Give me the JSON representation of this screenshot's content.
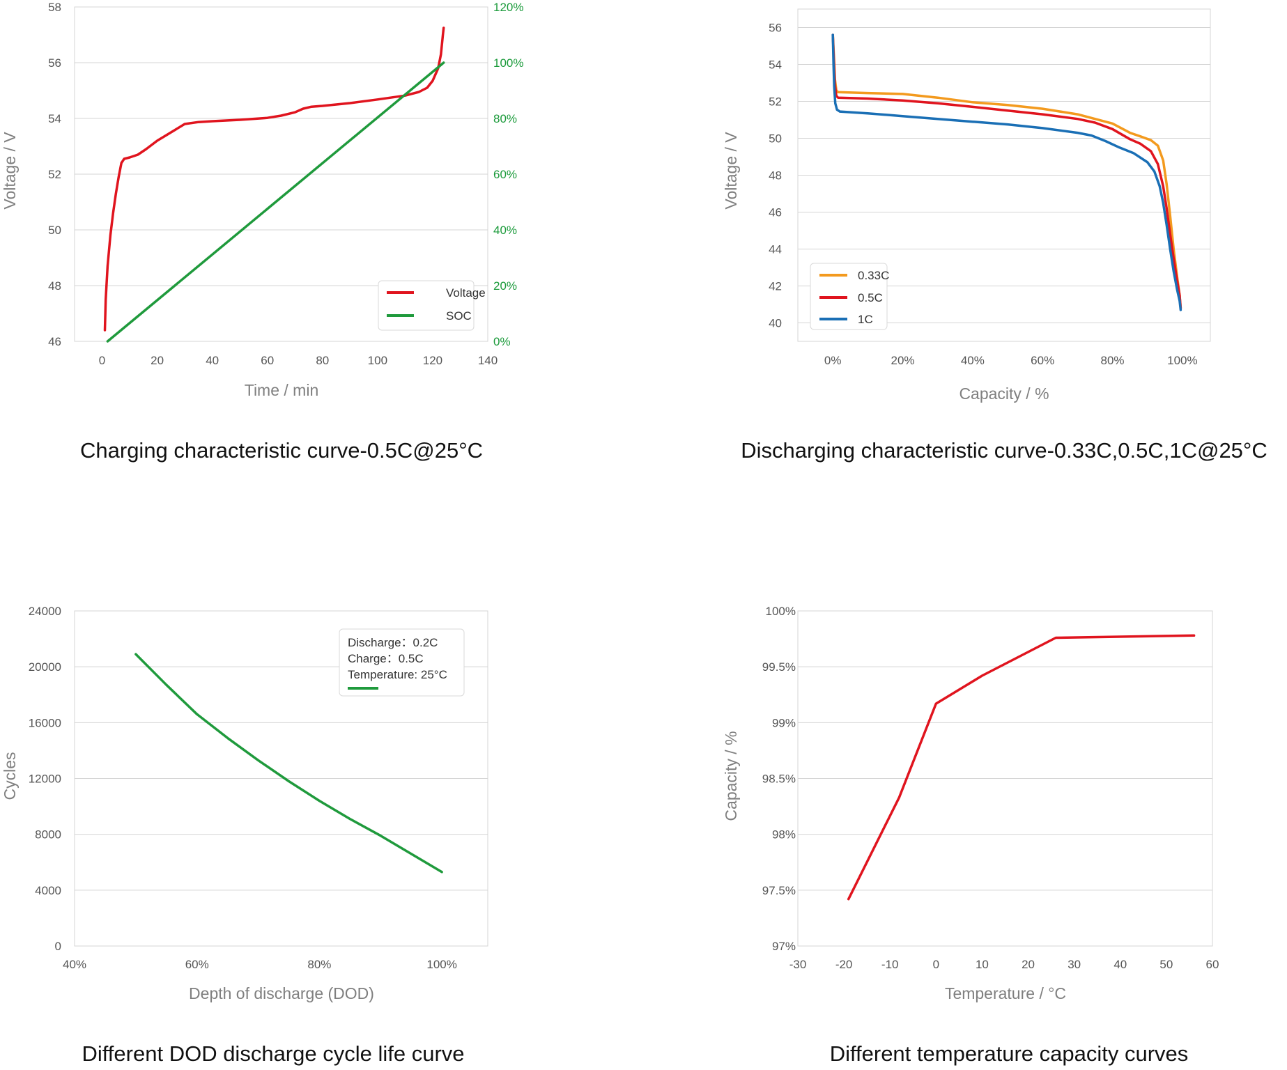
{
  "colors": {
    "red": "#e0141e",
    "green": "#1f9a3c",
    "orange": "#f39a1e",
    "blue": "#1a6fb5",
    "green_axis": "#1a9a3a"
  },
  "chart_data": [
    {
      "type": "line",
      "caption": "Charging characteristic curve-0.5C@25°C",
      "xlabel": "Time / min",
      "ylabel": "Voltage / V",
      "xlim": [
        -10,
        140
      ],
      "ylim": [
        46,
        58
      ],
      "y2lim": [
        0,
        120
      ],
      "x_ticks": [
        "0",
        "20",
        "40",
        "60",
        "80",
        "100",
        "120",
        "140"
      ],
      "y_ticks": [
        "46",
        "48",
        "50",
        "52",
        "54",
        "56",
        "58"
      ],
      "y2_ticks": [
        "0%",
        "20%",
        "40%",
        "60%",
        "80%",
        "100%",
        "120%"
      ],
      "legend_position": "bottom-right",
      "series": [
        {
          "name": "Voltage",
          "axis": "left",
          "color": "#e0141e",
          "points": [
            [
              1,
              46.4
            ],
            [
              1.3,
              47.5
            ],
            [
              2,
              48.7
            ],
            [
              3,
              49.8
            ],
            [
              4,
              50.6
            ],
            [
              5,
              51.3
            ],
            [
              6,
              51.9
            ],
            [
              7,
              52.4
            ],
            [
              8,
              52.55
            ],
            [
              10,
              52.6
            ],
            [
              13,
              52.7
            ],
            [
              16,
              52.9
            ],
            [
              20,
              53.2
            ],
            [
              25,
              53.5
            ],
            [
              30,
              53.8
            ],
            [
              35,
              53.87
            ],
            [
              40,
              53.9
            ],
            [
              50,
              53.95
            ],
            [
              60,
              54.02
            ],
            [
              65,
              54.1
            ],
            [
              70,
              54.22
            ],
            [
              73,
              54.35
            ],
            [
              76,
              54.42
            ],
            [
              80,
              54.45
            ],
            [
              90,
              54.55
            ],
            [
              100,
              54.68
            ],
            [
              110,
              54.82
            ],
            [
              115,
              54.95
            ],
            [
              118,
              55.1
            ],
            [
              120,
              55.35
            ],
            [
              122,
              55.8
            ],
            [
              123,
              56.3
            ],
            [
              123.7,
              57.0
            ],
            [
              124,
              57.25
            ]
          ]
        },
        {
          "name": "SOC",
          "axis": "right",
          "color": "#1f9a3c",
          "points": [
            [
              2,
              0
            ],
            [
              124,
              100
            ]
          ]
        }
      ]
    },
    {
      "type": "line",
      "caption": "Discharging characteristic curve-0.33C,0.5C,1C@25°C",
      "xlabel": "Capacity / %",
      "ylabel": "Voltage / V",
      "xlim": [
        -10,
        108
      ],
      "ylim": [
        39,
        57
      ],
      "x_ticks": [
        "0%",
        "20%",
        "40%",
        "60%",
        "80%",
        "100%"
      ],
      "y_ticks": [
        "40",
        "42",
        "44",
        "46",
        "48",
        "50",
        "52",
        "54",
        "56"
      ],
      "legend_position": "bottom-left",
      "series": [
        {
          "name": "0.33C",
          "color": "#f39a1e",
          "points": [
            [
              0,
              55.6
            ],
            [
              0.3,
              54.5
            ],
            [
              0.6,
              53.2
            ],
            [
              1,
              52.6
            ],
            [
              1.5,
              52.5
            ],
            [
              10,
              52.45
            ],
            [
              20,
              52.4
            ],
            [
              30,
              52.2
            ],
            [
              40,
              51.95
            ],
            [
              50,
              51.8
            ],
            [
              60,
              51.6
            ],
            [
              70,
              51.3
            ],
            [
              80,
              50.8
            ],
            [
              85,
              50.3
            ],
            [
              88,
              50.1
            ],
            [
              91,
              49.9
            ],
            [
              93,
              49.6
            ],
            [
              94.5,
              48.8
            ],
            [
              95.5,
              47.5
            ],
            [
              96.5,
              45.8
            ],
            [
              97.5,
              44.0
            ],
            [
              98.5,
              42.5
            ],
            [
              99.2,
              41.5
            ],
            [
              99.5,
              40.8
            ]
          ]
        },
        {
          "name": "0.5C",
          "color": "#e0141e",
          "points": [
            [
              0,
              55.6
            ],
            [
              0.3,
              54.2
            ],
            [
              0.6,
              52.9
            ],
            [
              1,
              52.3
            ],
            [
              1.5,
              52.2
            ],
            [
              10,
              52.15
            ],
            [
              20,
              52.05
            ],
            [
              30,
              51.9
            ],
            [
              40,
              51.7
            ],
            [
              50,
              51.5
            ],
            [
              60,
              51.3
            ],
            [
              70,
              51.05
            ],
            [
              75,
              50.85
            ],
            [
              80,
              50.5
            ],
            [
              85,
              49.95
            ],
            [
              88,
              49.7
            ],
            [
              91,
              49.3
            ],
            [
              93,
              48.6
            ],
            [
              94.5,
              47.4
            ],
            [
              95.5,
              46.2
            ],
            [
              96.5,
              44.8
            ],
            [
              97.5,
              43.5
            ],
            [
              98.5,
              42.3
            ],
            [
              99.2,
              41.5
            ],
            [
              99.5,
              40.8
            ]
          ]
        },
        {
          "name": "1C",
          "color": "#1a6fb5",
          "points": [
            [
              0,
              55.6
            ],
            [
              0.2,
              54.0
            ],
            [
              0.4,
              52.8
            ],
            [
              0.7,
              51.9
            ],
            [
              1.2,
              51.55
            ],
            [
              2,
              51.45
            ],
            [
              10,
              51.35
            ],
            [
              20,
              51.2
            ],
            [
              30,
              51.05
            ],
            [
              40,
              50.9
            ],
            [
              50,
              50.75
            ],
            [
              60,
              50.55
            ],
            [
              70,
              50.3
            ],
            [
              74,
              50.15
            ],
            [
              78,
              49.85
            ],
            [
              82,
              49.5
            ],
            [
              86,
              49.2
            ],
            [
              90,
              48.7
            ],
            [
              92,
              48.2
            ],
            [
              93.5,
              47.4
            ],
            [
              94.5,
              46.5
            ],
            [
              95.5,
              45.3
            ],
            [
              96.5,
              44.0
            ],
            [
              97.5,
              42.8
            ],
            [
              98.5,
              41.8
            ],
            [
              99.2,
              41.2
            ],
            [
              99.5,
              40.7
            ]
          ]
        }
      ]
    },
    {
      "type": "line",
      "caption": "Different DOD discharge cycle life curve",
      "xlabel": "Depth of discharge (DOD)",
      "ylabel": "Cycles",
      "xlim": [
        40,
        107.5
      ],
      "ylim": [
        0,
        24000
      ],
      "x_ticks": [
        "40%",
        "60%",
        "80%",
        "100%"
      ],
      "y_ticks": [
        "0",
        "4000",
        "8000",
        "12000",
        "16000",
        "20000",
        "24000"
      ],
      "legend_position": "top-right",
      "legend_lines": [
        "Discharge：0.2C",
        "Charge：0.5C",
        "Temperature: 25°C"
      ],
      "series": [
        {
          "name": "",
          "color": "#1f9a3c",
          "points": [
            [
              50,
              20900
            ],
            [
              55,
              18700
            ],
            [
              60,
              16600
            ],
            [
              65,
              14900
            ],
            [
              70,
              13300
            ],
            [
              75,
              11800
            ],
            [
              80,
              10400
            ],
            [
              85,
              9100
            ],
            [
              90,
              7900
            ],
            [
              95,
              6600
            ],
            [
              100,
              5300
            ]
          ]
        }
      ]
    },
    {
      "type": "line",
      "caption": "Different temperature capacity curves",
      "xlabel": "Temperature / °C",
      "ylabel": "Capacity / %",
      "xlim": [
        -30,
        60
      ],
      "ylim": [
        97,
        100
      ],
      "x_ticks": [
        "-30",
        "-20",
        "-10",
        "0",
        "10",
        "20",
        "30",
        "40",
        "50",
        "60"
      ],
      "y_ticks": [
        "97%",
        "97.5%",
        "98%",
        "98.5%",
        "99%",
        "99.5%",
        "100%"
      ],
      "series": [
        {
          "name": "",
          "color": "#e0141e",
          "points": [
            [
              -19,
              97.42
            ],
            [
              -8,
              98.33
            ],
            [
              0,
              99.17
            ],
            [
              10,
              99.42
            ],
            [
              26,
              99.76
            ],
            [
              56,
              99.78
            ]
          ]
        }
      ]
    }
  ]
}
